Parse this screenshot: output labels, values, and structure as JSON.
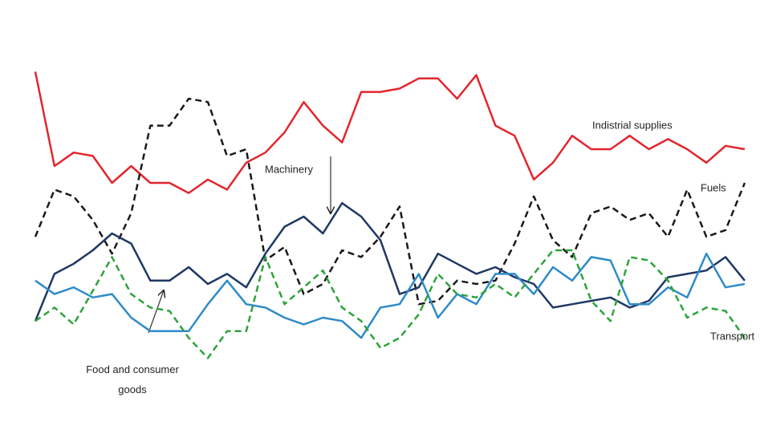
{
  "chart_data": {
    "type": "line",
    "categories": [
      null,
      null,
      null,
      null,
      null,
      null,
      null,
      null,
      null,
      null,
      null,
      null,
      null,
      null,
      null,
      null,
      null,
      null,
      null,
      null,
      null,
      null,
      null,
      null,
      null,
      null,
      null,
      null,
      null,
      null,
      null,
      null,
      null,
      null,
      null,
      null,
      null,
      null
    ],
    "ylim": [
      0,
      100
    ],
    "series": [
      {
        "name": "Indistrial supplies",
        "color": "#e3262e",
        "dashed": false,
        "values": [
          93,
          65,
          69,
          68,
          60,
          65,
          60,
          60,
          57,
          61,
          58,
          66,
          69,
          75,
          84,
          77,
          72,
          87,
          87,
          88,
          91,
          91,
          85,
          92,
          77,
          74,
          61,
          66,
          74,
          70,
          70,
          74,
          70,
          73,
          70,
          66,
          71,
          70
        ]
      },
      {
        "name": "Fuels",
        "color": "#1a1a1a",
        "dashed": true,
        "values": [
          44,
          58,
          56,
          49,
          39,
          51,
          77,
          77,
          85,
          84,
          68,
          70,
          37,
          41,
          27,
          30,
          40,
          38,
          44,
          53,
          24,
          25,
          31,
          30,
          31,
          42,
          56,
          43,
          38,
          51,
          53,
          49,
          51,
          44,
          58,
          44,
          46,
          60
        ]
      },
      {
        "name": "Machinery",
        "color": "#1f3864",
        "dashed": false,
        "values": [
          19,
          33,
          36,
          40,
          45,
          42,
          31,
          31,
          35,
          30,
          33,
          29,
          39,
          47,
          50,
          45,
          54,
          50,
          43,
          27,
          29,
          39,
          36,
          33,
          35,
          32,
          30,
          23,
          24,
          25,
          26,
          23,
          25,
          32,
          33,
          34,
          38,
          31
        ]
      },
      {
        "name": "Food and consumer goods",
        "color": "#2e8bc9",
        "dashed": false,
        "values": [
          31,
          27,
          29,
          26,
          27,
          20,
          16,
          16,
          16,
          24,
          31,
          24,
          23,
          20,
          18,
          20,
          19,
          14,
          23,
          24,
          33,
          20,
          27,
          24,
          33,
          33,
          27,
          35,
          31,
          38,
          37,
          24,
          24,
          29,
          26,
          39,
          29,
          30
        ]
      },
      {
        "name": "Transport",
        "color": "#2ca33a",
        "dashed": true,
        "values": [
          19,
          23,
          18,
          28,
          38,
          27,
          23,
          22,
          14,
          8,
          16,
          16,
          38,
          24,
          29,
          34,
          23,
          19,
          11,
          14,
          21,
          33,
          27,
          26,
          30,
          26,
          33,
          40,
          40,
          25,
          19,
          38,
          37,
          31,
          20,
          23,
          22,
          14
        ]
      }
    ]
  }
}
